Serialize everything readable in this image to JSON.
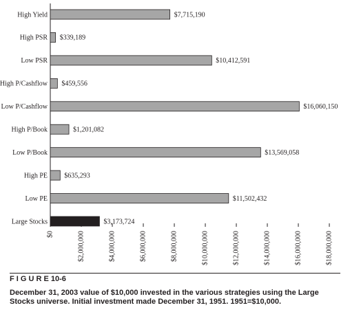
{
  "chart_data": {
    "type": "barh",
    "categories": [
      "High Yield",
      "High PSR",
      "Low PSR",
      "High P/Cashflow",
      "Low P/Cashflow",
      "High P/Book",
      "Low P/Book",
      "High PE",
      "Low PE",
      "Large Stocks"
    ],
    "values": [
      7715190,
      339189,
      10412591,
      459556,
      16060150,
      1201082,
      13569058,
      635293,
      11502432,
      3173724
    ],
    "value_labels": [
      "$7,715,190",
      "$339,189",
      "$10,412,591",
      "$459,556",
      "$16,060,150",
      "$1,201,082",
      "$13,569,058",
      "$635,293",
      "$11,502,432",
      "$3,173,724"
    ],
    "colors": [
      "#a6a6a6",
      "#a6a6a6",
      "#a6a6a6",
      "#a6a6a6",
      "#a6a6a6",
      "#a6a6a6",
      "#a6a6a6",
      "#a6a6a6",
      "#a6a6a6",
      "#231f20"
    ],
    "xlim": [
      0,
      18000000
    ],
    "xticks": [
      {
        "value": 0,
        "label": "$0"
      },
      {
        "value": 2000000,
        "label": "$2,000,000"
      },
      {
        "value": 4000000,
        "label": "$4,000,000"
      },
      {
        "value": 6000000,
        "label": "$6,000,000"
      },
      {
        "value": 8000000,
        "label": "$8,000,000"
      },
      {
        "value": 10000000,
        "label": "$10,000,000"
      },
      {
        "value": 12000000,
        "label": "$12,000,000"
      },
      {
        "value": 14000000,
        "label": "$14,000,000"
      },
      {
        "value": 16000000,
        "label": "$16,000,000"
      },
      {
        "value": 18000000,
        "label": "$18,000,000"
      }
    ],
    "figure_label": "F I G U R E   10-6",
    "caption": "December 31, 2003 value of $10,000 invested in the various strategies using the Large Stocks universe. Initial investment made December 31, 1951. 1951=$10,000."
  }
}
